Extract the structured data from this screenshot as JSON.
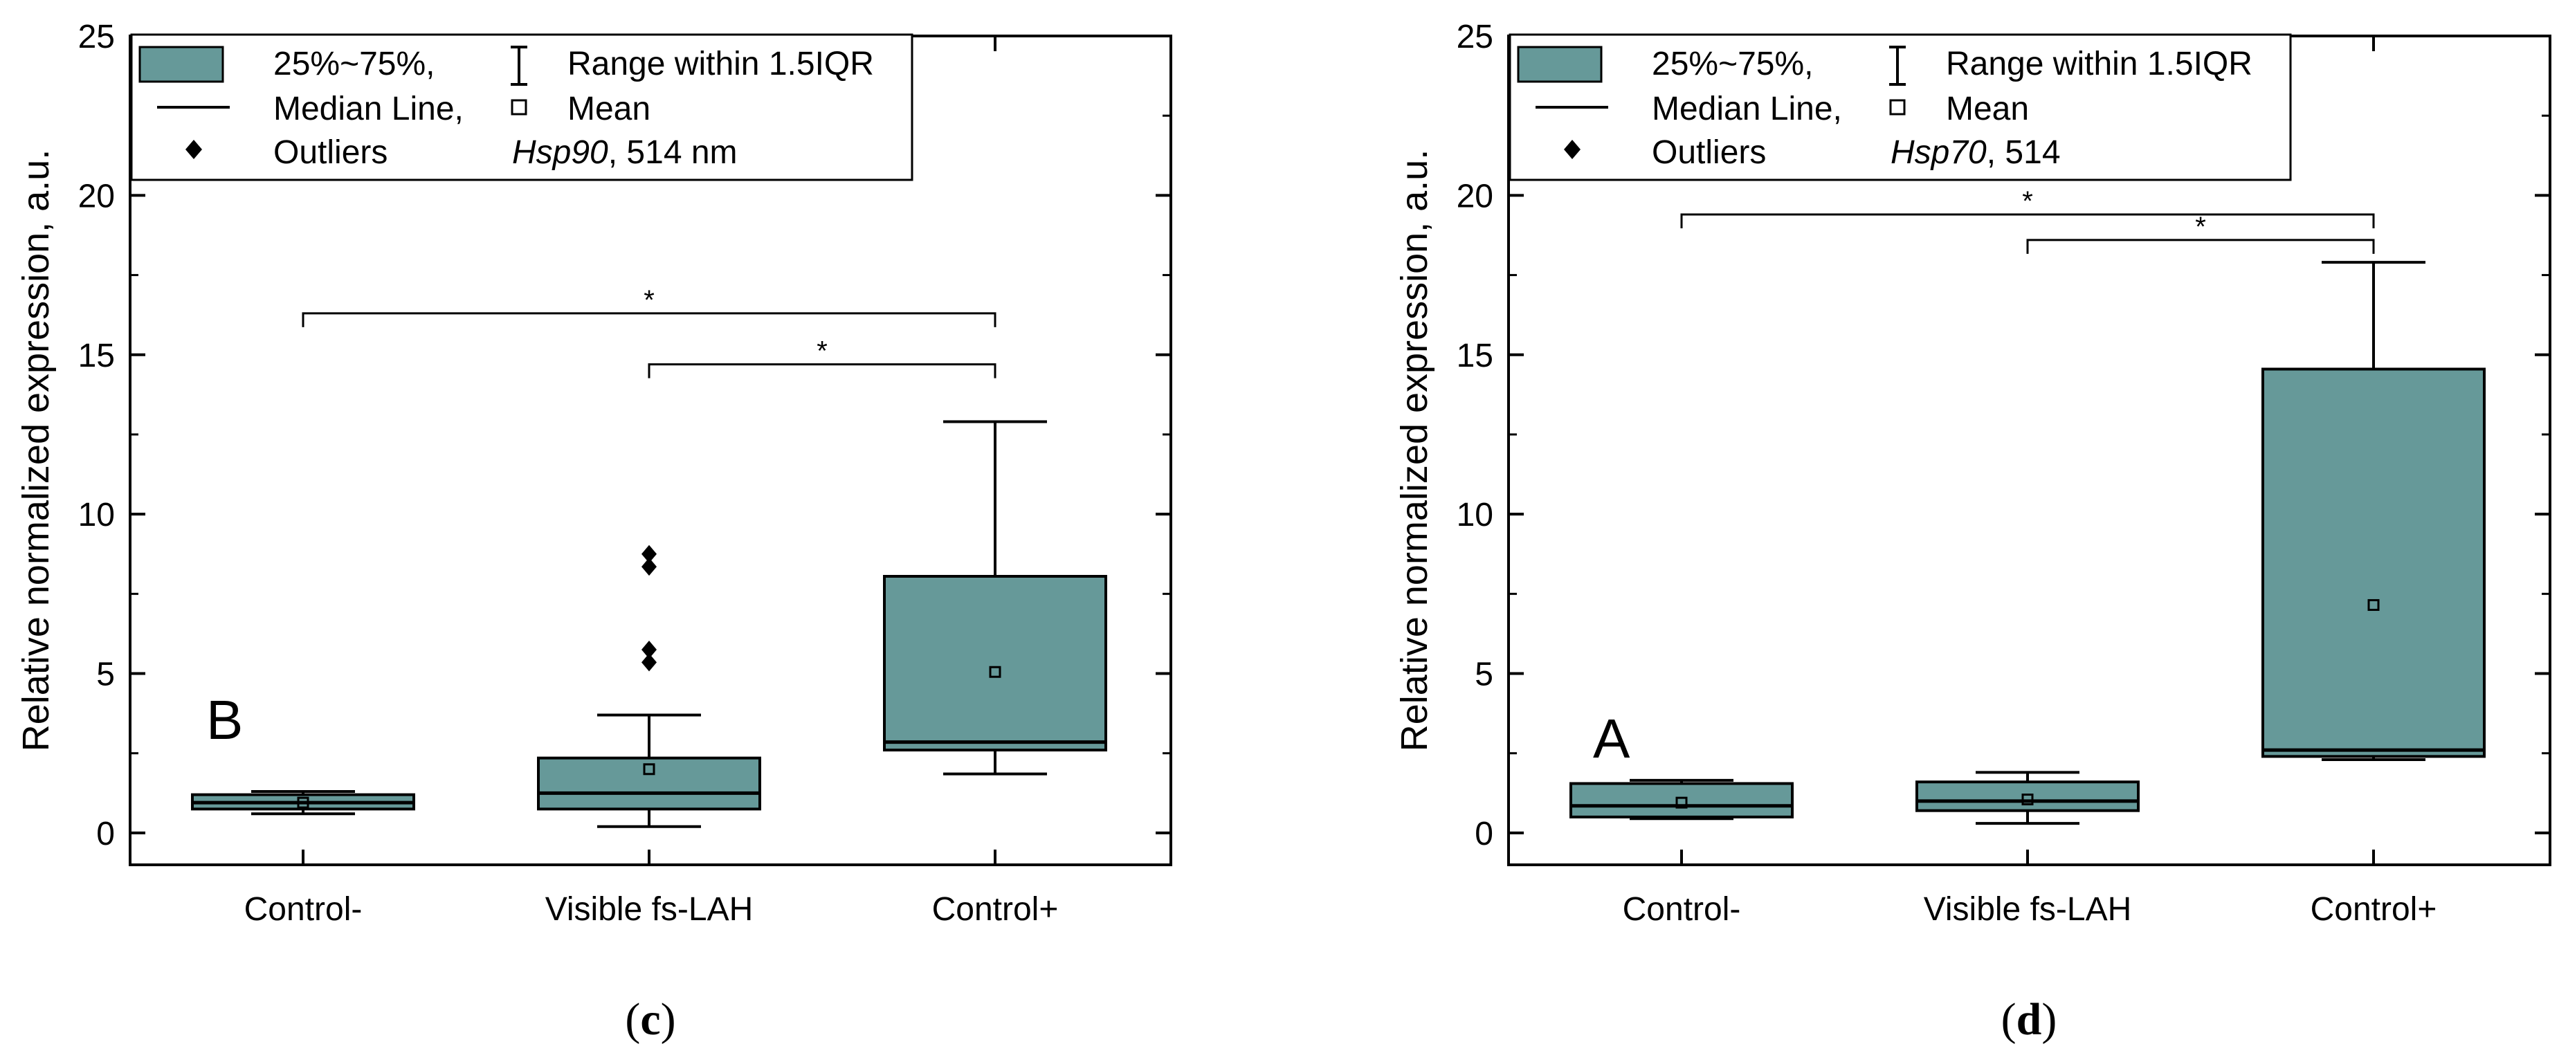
{
  "box_color": "#669999",
  "legend_labels": {
    "box": "25%~75%,",
    "whisker": "Range within 1.5IQR",
    "median": "Median Line,",
    "mean": "Mean",
    "outliers": "Outliers"
  },
  "chart_data": [
    {
      "type": "box",
      "caption_prefix": "(",
      "caption_letter": "c",
      "caption_suffix": ")",
      "panel_label": "B",
      "legend_gene": "Hsp90",
      "legend_wavelength": ", 514 nm",
      "ylabel": "Relative normalized expression, a.u.",
      "ylim": [
        -1,
        25
      ],
      "yticks": [
        0,
        5,
        10,
        15,
        20,
        25
      ],
      "categories": [
        "Control-",
        "Visible fs-LAH",
        "Control+"
      ],
      "boxes": [
        {
          "q1": 0.75,
          "median": 0.95,
          "q3": 1.2,
          "whisker_low": 0.6,
          "whisker_high": 1.3,
          "mean": 0.95,
          "outliers": []
        },
        {
          "q1": 0.75,
          "median": 1.25,
          "q3": 2.35,
          "whisker_low": 0.2,
          "whisker_high": 3.7,
          "mean": 2.0,
          "outliers": [
            5.35,
            5.75,
            8.35,
            8.75
          ]
        },
        {
          "q1": 2.6,
          "median": 2.85,
          "q3": 8.05,
          "whisker_low": 1.85,
          "whisker_high": 12.9,
          "mean": 5.05,
          "outliers": []
        }
      ],
      "brackets": [
        {
          "from": 0,
          "to": 2,
          "y": 16.3,
          "label": "*"
        },
        {
          "from": 1,
          "to": 2,
          "y": 14.7,
          "label": "*"
        }
      ]
    },
    {
      "type": "box",
      "caption_prefix": "(",
      "caption_letter": "d",
      "caption_suffix": ")",
      "panel_label": "A",
      "legend_gene": "Hsp70",
      "legend_wavelength": ", 514",
      "ylabel": "Relative normalized expression, a.u.",
      "ylim": [
        -1,
        25
      ],
      "yticks": [
        0,
        5,
        10,
        15,
        20,
        25
      ],
      "categories": [
        "Control-",
        "Visible fs-LAH",
        "Control+"
      ],
      "boxes": [
        {
          "q1": 0.5,
          "median": 0.85,
          "q3": 1.55,
          "whisker_low": 0.45,
          "whisker_high": 1.65,
          "mean": 0.95,
          "outliers": []
        },
        {
          "q1": 0.7,
          "median": 1.0,
          "q3": 1.6,
          "whisker_low": 0.3,
          "whisker_high": 1.9,
          "mean": 1.05,
          "outliers": []
        },
        {
          "q1": 2.4,
          "median": 2.6,
          "q3": 14.55,
          "whisker_low": 2.3,
          "whisker_high": 17.9,
          "mean": 7.15,
          "outliers": []
        }
      ],
      "brackets": [
        {
          "from": 0,
          "to": 2,
          "y": 19.4,
          "label": "*"
        },
        {
          "from": 1,
          "to": 2,
          "y": 18.6,
          "label": "*"
        }
      ]
    }
  ]
}
